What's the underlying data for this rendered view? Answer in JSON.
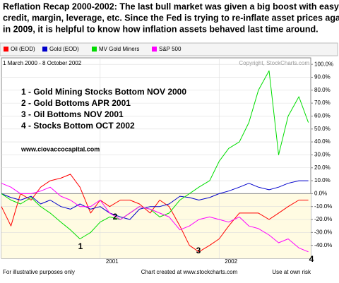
{
  "chart_data": {
    "type": "line",
    "title_lines": [
      "Reflation Recap 2000-2002:   The last bull market was given a big boost with easy",
      "credit, margin, leverage, etc.   Since the Fed is trying to re-inflate asset prices again",
      "in 2009, it is helpful to know how inflation assets behaved last time around."
    ],
    "subtitle": "1 March 2000 - 8 October 2002",
    "copyright": "Copyright, StockCharts.com",
    "annotations": [
      "1 -  Gold Mining Stocks Bottom NOV 2000",
      "2 -  Gold Bottoms APR 2001",
      "3 -  Oil Bottoms NOV 2001",
      "4 -  Stocks Bottom OCT 2002"
    ],
    "website": "www.ciovaccocapital.com",
    "markers": [
      "1",
      "2",
      "3",
      "4"
    ],
    "footer": [
      "For illustrative purposes only",
      "Chart created at www.stockcharts.com",
      "Use at own risk"
    ],
    "x": [
      2000.17,
      2000.25,
      2000.33,
      2000.42,
      2000.5,
      2000.58,
      2000.67,
      2000.75,
      2000.83,
      2000.92,
      2001.0,
      2001.08,
      2001.17,
      2001.25,
      2001.33,
      2001.42,
      2001.5,
      2001.58,
      2001.67,
      2001.75,
      2001.83,
      2001.92,
      2002.0,
      2002.08,
      2002.17,
      2002.25,
      2002.33,
      2002.42,
      2002.5,
      2002.58,
      2002.67,
      2002.75
    ],
    "xlim": [
      2000.17,
      2002.77
    ],
    "xticks": [
      2001,
      2002
    ],
    "ylim": [
      -50,
      105
    ],
    "yticks": [
      {
        "value": 100,
        "label": "100.0%"
      },
      {
        "value": 90,
        "label": "90.0%"
      },
      {
        "value": 80,
        "label": "80.0%"
      },
      {
        "value": 70,
        "label": "70.0%"
      },
      {
        "value": 60,
        "label": "60.0%"
      },
      {
        "value": 50,
        "label": "50.0%"
      },
      {
        "value": 40,
        "label": "40.0%"
      },
      {
        "value": 30,
        "label": "30.0%"
      },
      {
        "value": 20,
        "label": "20.0%"
      },
      {
        "value": 10,
        "label": "10.0%"
      },
      {
        "value": 0,
        "label": "0.0%"
      },
      {
        "value": -10,
        "label": "-10.0%"
      },
      {
        "value": -20,
        "label": "-20.0%"
      },
      {
        "value": -30,
        "label": "-30.0%"
      },
      {
        "value": -40,
        "label": "-40.0%"
      }
    ],
    "grid": true,
    "series": [
      {
        "name": "Oil (EOD)",
        "color": "#ff0000",
        "values": [
          -10,
          -25,
          0,
          -5,
          5,
          10,
          12,
          15,
          5,
          -15,
          -5,
          -10,
          -5,
          -5,
          -8,
          -15,
          -5,
          -10,
          -25,
          -40,
          -45,
          -40,
          -35,
          -25,
          -15,
          -15,
          -15,
          -20,
          -15,
          -10,
          -5,
          -5
        ]
      },
      {
        "name": "Gold (EOD)",
        "color": "#0000cc",
        "values": [
          0,
          -3,
          -5,
          -2,
          -8,
          -5,
          -10,
          -12,
          -8,
          -12,
          -10,
          -15,
          -18,
          -20,
          -12,
          -10,
          -10,
          -8,
          -2,
          -3,
          -5,
          -3,
          0,
          2,
          5,
          8,
          5,
          3,
          5,
          8,
          10,
          10
        ]
      },
      {
        "name": "MV Gold Miners",
        "color": "#00dd00",
        "values": [
          0,
          -5,
          -8,
          -3,
          -10,
          -15,
          -22,
          -28,
          -35,
          -30,
          -22,
          -18,
          -20,
          -15,
          -10,
          -12,
          -18,
          -15,
          -5,
          0,
          5,
          10,
          25,
          35,
          40,
          55,
          80,
          95,
          30,
          60,
          75,
          55
        ]
      },
      {
        "name": "S&P 500",
        "color": "#ff00ff",
        "values": [
          8,
          5,
          0,
          0,
          2,
          5,
          -2,
          -5,
          -10,
          -10,
          -5,
          -15,
          -20,
          -15,
          -10,
          -12,
          -15,
          -18,
          -28,
          -25,
          -20,
          -18,
          -20,
          -22,
          -18,
          -25,
          -27,
          -32,
          -38,
          -35,
          -42,
          -45
        ]
      }
    ]
  }
}
